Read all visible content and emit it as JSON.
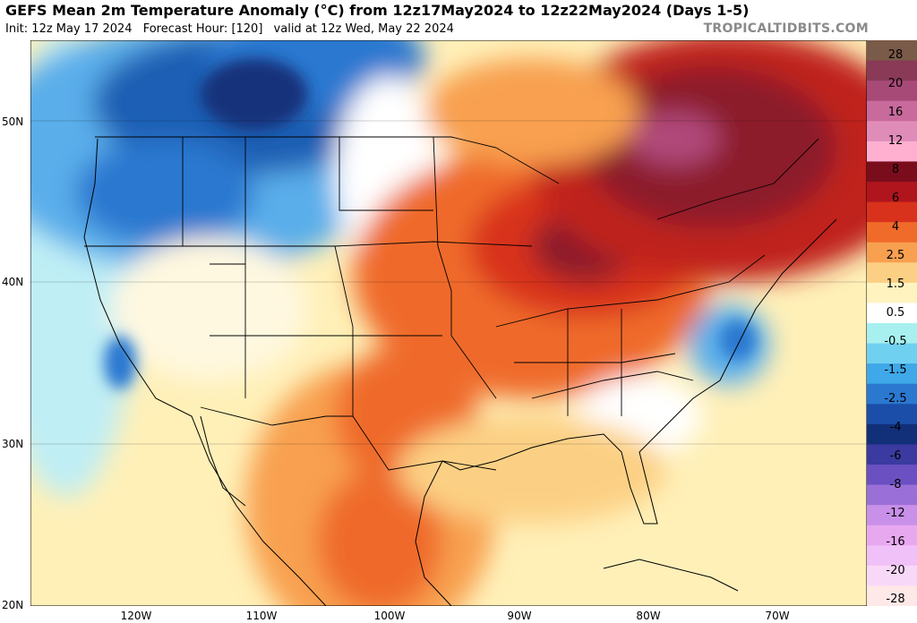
{
  "header": {
    "title": "GEFS Mean 2m Temperature Anomaly (°C) from 12z17May2024 to 12z22May2024 (Days 1-5)",
    "init": "Init: 12z May 17 2024",
    "forecast_hour": "Forecast Hour: [120]",
    "valid": "valid at 12z Wed, May 22 2024",
    "brand": "TROPICALTIDBITS.COM"
  },
  "axes": {
    "lat_labels": [
      "50N",
      "40N",
      "30N",
      "20N"
    ],
    "lon_labels": [
      "120W",
      "110W",
      "100W",
      "90W",
      "80W",
      "70W"
    ]
  },
  "legend": {
    "labels": [
      "28",
      "20",
      "16",
      "12",
      "8",
      "6",
      "4",
      "2.5",
      "1.5",
      "0.5",
      "-0.5",
      "-1.5",
      "-2.5",
      "-4",
      "-6",
      "-8",
      "-12",
      "-16",
      "-20",
      "-28"
    ],
    "colors": [
      "#7a5a48",
      "#8a3a56",
      "#a84a78",
      "#c86a9c",
      "#e08cb8",
      "#ffb0d0",
      "#7a0d1c",
      "#b0151e",
      "#d8321c",
      "#f06a2a",
      "#f8a050",
      "#fcd084",
      "#fff4c0",
      "#ffffff",
      "#a8f0f0",
      "#70d0f0",
      "#3ea8e8",
      "#2a78d0",
      "#1a4ea8",
      "#12307a",
      "#3a3aa0",
      "#6a50c0",
      "#9a70d8",
      "#c890e8",
      "#e8a8f0",
      "#f0c0f8",
      "#f8d8f8",
      "#ffe8e8"
    ]
  },
  "colors": {
    "ocean": "#fff0b8",
    "cold_strong": "#1e5fb4",
    "cold_weak": "#5aaeea",
    "neutral": "#ffffff",
    "warm_weak": "#fbbd6a",
    "warm": "#ef6a2c",
    "warm_strong": "#c0201e",
    "hot": "#8c1a2c"
  }
}
